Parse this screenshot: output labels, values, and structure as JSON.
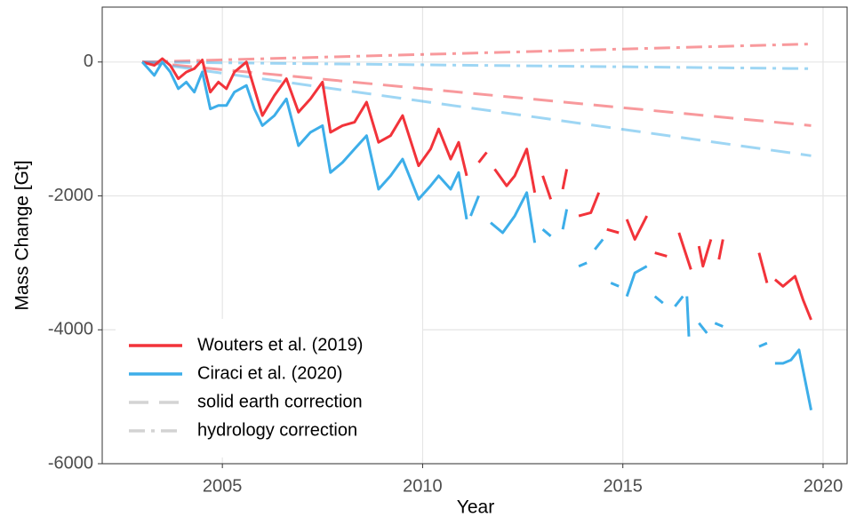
{
  "chart_data": {
    "type": "line",
    "xlabel": "Year",
    "ylabel": "Mass Change [Gt]",
    "xlim": [
      2002,
      2020.6
    ],
    "ylim": [
      -6000,
      820
    ],
    "xticks": [
      2005,
      2010,
      2015,
      2020
    ],
    "yticks": [
      -6000,
      -4000,
      -2000,
      0
    ],
    "grid": true,
    "legend_position": "bottom-left",
    "correction_styles": [
      {
        "name": "solid earth correction",
        "dash": "long-dash",
        "color": "#d3d3d3"
      },
      {
        "name": "hydrology correction",
        "dash": "dot-dash",
        "color": "#d3d3d3"
      }
    ],
    "series": [
      {
        "name": "Wouters et al. (2019)",
        "color": "#f2333a",
        "x": [
          2003.0,
          2003.3,
          2003.5,
          2003.7,
          2003.9,
          2004.1,
          2004.3,
          2004.5,
          2004.7,
          2004.9,
          2005.1,
          2005.3,
          2005.6,
          2005.8,
          2006.0,
          2006.3,
          2006.6,
          2006.9,
          2007.2,
          2007.5,
          2007.7,
          2008.0,
          2008.3,
          2008.6,
          2008.9,
          2009.2,
          2009.5,
          2009.9,
          2010.2,
          2010.4,
          2010.7,
          2010.9,
          2011.1,
          null,
          2011.4,
          2011.6,
          null,
          2011.8,
          2012.1,
          2012.3,
          2012.6,
          2012.8,
          null,
          2013.0,
          2013.2,
          null,
          2013.5,
          2013.6,
          null,
          2013.9,
          2014.2,
          2014.4,
          null,
          2014.6,
          2014.9,
          null,
          2015.1,
          2015.3,
          2015.6,
          null,
          2015.8,
          2016.1,
          null,
          2016.4,
          2016.7,
          null,
          2016.9,
          2017.0,
          2017.2,
          null,
          2017.4,
          2017.5,
          null,
          2018.4,
          2018.6,
          null,
          2018.8,
          2019.0,
          2019.3,
          2019.5,
          2019.7
        ],
        "values": [
          0,
          -50,
          50,
          -50,
          -250,
          -150,
          -100,
          30,
          -450,
          -300,
          -400,
          -150,
          0,
          -400,
          -800,
          -500,
          -250,
          -750,
          -550,
          -300,
          -1050,
          -950,
          -900,
          -600,
          -1200,
          -1100,
          -800,
          -1550,
          -1300,
          -1000,
          -1450,
          -1200,
          -1700,
          null,
          -1500,
          -1350,
          null,
          -1600,
          -1850,
          -1700,
          -1300,
          -1950,
          null,
          -1700,
          -2050,
          null,
          -1900,
          -1600,
          null,
          -2300,
          -2250,
          -1950,
          null,
          -2500,
          -2550,
          null,
          -2350,
          -2650,
          -2300,
          null,
          -2850,
          -2900,
          null,
          -2550,
          -3100,
          null,
          -2750,
          -3050,
          -2650,
          null,
          -2950,
          -2650,
          null,
          -2850,
          -3300,
          null,
          -3250,
          -3350,
          -3200,
          -3550,
          -3850
        ],
        "corrections": [
          {
            "x": [
              2003,
              2019.7
            ],
            "values": [
              0,
              -950
            ]
          },
          {
            "x": [
              2003,
              2019.7
            ],
            "values": [
              0,
              270
            ]
          }
        ]
      },
      {
        "name": "Ciraci et al. (2020)",
        "color": "#3daee9",
        "x": [
          2003.0,
          2003.3,
          2003.5,
          2003.7,
          2003.9,
          2004.1,
          2004.3,
          2004.5,
          2004.7,
          2004.9,
          2005.1,
          2005.3,
          2005.6,
          2005.8,
          2006.0,
          2006.3,
          2006.6,
          2006.9,
          2007.2,
          2007.5,
          2007.7,
          2008.0,
          2008.3,
          2008.6,
          2008.9,
          2009.2,
          2009.5,
          2009.9,
          2010.2,
          2010.4,
          2010.7,
          2010.9,
          2011.1,
          null,
          2011.2,
          2011.4,
          null,
          2011.7,
          2012.0,
          2012.3,
          2012.6,
          2012.8,
          null,
          2013.0,
          2013.2,
          null,
          2013.5,
          2013.6,
          null,
          2013.9,
          2014.1,
          null,
          2014.3,
          2014.5,
          null,
          2014.7,
          2014.9,
          null,
          2015.1,
          2015.3,
          2015.6,
          null,
          2015.8,
          2016.0,
          null,
          2016.3,
          2016.5,
          null,
          2016.6,
          2016.65,
          null,
          2016.9,
          2017.1,
          null,
          2017.3,
          2017.5,
          null,
          2018.4,
          2018.6,
          null,
          2018.8,
          2019.0,
          2019.2,
          2019.4,
          2019.7
        ],
        "values": [
          0,
          -200,
          0,
          -150,
          -400,
          -300,
          -450,
          -150,
          -700,
          -650,
          -650,
          -450,
          -350,
          -700,
          -950,
          -800,
          -550,
          -1250,
          -1050,
          -950,
          -1650,
          -1500,
          -1300,
          -1100,
          -1900,
          -1700,
          -1450,
          -2050,
          -1850,
          -1700,
          -1900,
          -1650,
          -2350,
          null,
          -2300,
          -2000,
          null,
          -2400,
          -2550,
          -2300,
          -1950,
          -2700,
          null,
          -2500,
          -2600,
          null,
          -2500,
          -2200,
          null,
          -3050,
          -3000,
          null,
          -2800,
          -2650,
          null,
          -3300,
          -3350,
          null,
          -3500,
          -3150,
          -3050,
          null,
          -3500,
          -3600,
          null,
          -3650,
          -3500,
          null,
          -3500,
          -4100,
          null,
          -3900,
          -4050,
          null,
          -3900,
          -3950,
          null,
          -4250,
          -4200,
          null,
          -4500,
          -4500,
          -4450,
          -4300,
          -5200
        ],
        "corrections": [
          {
            "x": [
              2003,
              2019.7
            ],
            "values": [
              0,
              -1400
            ]
          },
          {
            "x": [
              2003,
              2019.7
            ],
            "values": [
              0,
              -100
            ]
          }
        ]
      }
    ]
  }
}
